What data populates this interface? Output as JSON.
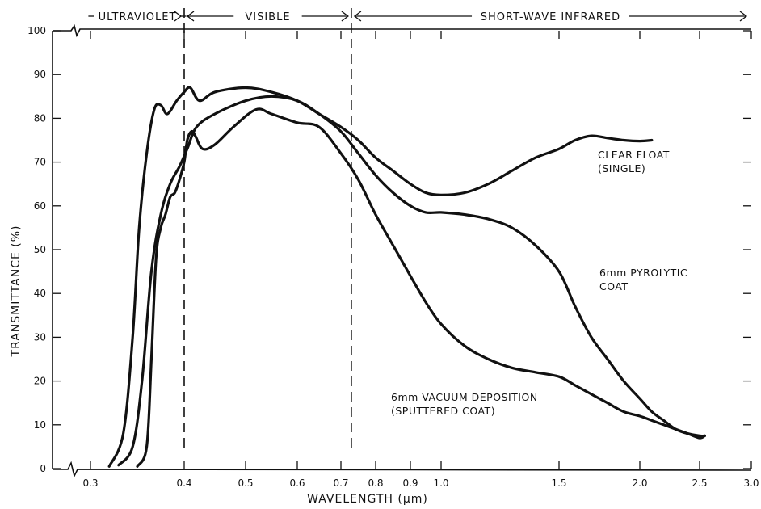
{
  "chart_data": {
    "type": "line",
    "title": "",
    "xlabel": "WAVELENGTH (μm)",
    "ylabel": "TRANSMITTANCE (%)",
    "xlim": [
      0.3,
      3.0
    ],
    "ylim": [
      0,
      100
    ],
    "x_ticks": [
      "0.3",
      "0.4",
      "0.5",
      "0.6",
      "0.7",
      "0.8",
      "0.9",
      "1.0",
      "1.5",
      "2.0",
      "2.5",
      "3.0"
    ],
    "y_ticks": [
      "0",
      "10",
      "20",
      "30",
      "40",
      "50",
      "60",
      "70",
      "80",
      "90",
      "100"
    ],
    "regions": [
      {
        "label": "ULTRAVIOLET",
        "from": 0.3,
        "to": 0.4
      },
      {
        "label": "VISIBLE",
        "from": 0.4,
        "to": 0.73
      },
      {
        "label": "SHORT-WAVE INFRARED",
        "from": 0.73,
        "to": 3.0
      }
    ],
    "series": [
      {
        "name": "CLEAR FLOAT (SINGLE)",
        "label_lines": [
          "CLEAR FLOAT",
          "(SINGLE)"
        ],
        "points": [
          [
            0.32,
            0.5
          ],
          [
            0.335,
            8
          ],
          [
            0.345,
            30
          ],
          [
            0.352,
            55
          ],
          [
            0.36,
            72
          ],
          [
            0.368,
            82
          ],
          [
            0.375,
            83
          ],
          [
            0.382,
            81
          ],
          [
            0.392,
            84
          ],
          [
            0.4,
            86
          ],
          [
            0.41,
            87
          ],
          [
            0.425,
            84
          ],
          [
            0.45,
            86
          ],
          [
            0.5,
            87
          ],
          [
            0.55,
            86
          ],
          [
            0.6,
            84
          ],
          [
            0.65,
            81
          ],
          [
            0.7,
            78
          ],
          [
            0.75,
            75
          ],
          [
            0.8,
            71
          ],
          [
            0.85,
            68
          ],
          [
            0.9,
            65
          ],
          [
            0.95,
            63
          ],
          [
            1.0,
            62.5
          ],
          [
            1.1,
            63
          ],
          [
            1.2,
            65
          ],
          [
            1.3,
            68
          ],
          [
            1.4,
            71
          ],
          [
            1.5,
            73
          ],
          [
            1.6,
            75
          ],
          [
            1.7,
            76
          ],
          [
            1.8,
            75.5
          ],
          [
            1.9,
            75
          ],
          [
            2.0,
            74.8
          ],
          [
            2.1,
            75
          ]
        ]
      },
      {
        "name": "6mm PYROLYTIC COAT",
        "label_lines": [
          "6mm PYROLYTIC",
          "COAT"
        ],
        "points": [
          [
            0.33,
            0.8
          ],
          [
            0.345,
            5
          ],
          [
            0.355,
            20
          ],
          [
            0.365,
            45
          ],
          [
            0.375,
            58
          ],
          [
            0.385,
            65
          ],
          [
            0.395,
            69
          ],
          [
            0.405,
            73
          ],
          [
            0.42,
            78
          ],
          [
            0.45,
            81
          ],
          [
            0.5,
            84
          ],
          [
            0.55,
            85
          ],
          [
            0.6,
            84
          ],
          [
            0.65,
            81
          ],
          [
            0.7,
            77
          ],
          [
            0.75,
            72
          ],
          [
            0.8,
            67
          ],
          [
            0.85,
            63
          ],
          [
            0.9,
            60
          ],
          [
            0.95,
            58.5
          ],
          [
            1.0,
            58.5
          ],
          [
            1.1,
            58
          ],
          [
            1.2,
            57
          ],
          [
            1.3,
            55
          ],
          [
            1.4,
            51
          ],
          [
            1.5,
            45
          ],
          [
            1.6,
            37
          ],
          [
            1.7,
            30
          ],
          [
            1.8,
            25
          ],
          [
            1.9,
            20
          ],
          [
            2.0,
            16
          ],
          [
            2.1,
            13
          ],
          [
            2.2,
            11
          ],
          [
            2.3,
            9
          ],
          [
            2.4,
            8
          ],
          [
            2.5,
            7.5
          ],
          [
            2.55,
            7.5
          ]
        ]
      },
      {
        "name": "6mm VACUUM DEPOSITION (SPUTTERED COAT)",
        "label_lines": [
          "6mm VACUUM DEPOSITION",
          "(SPUTTERED COAT)"
        ],
        "points": [
          [
            0.35,
            0.5
          ],
          [
            0.36,
            5
          ],
          [
            0.365,
            25
          ],
          [
            0.37,
            48
          ],
          [
            0.375,
            55
          ],
          [
            0.38,
            58
          ],
          [
            0.385,
            62
          ],
          [
            0.39,
            63
          ],
          [
            0.395,
            66
          ],
          [
            0.4,
            70
          ],
          [
            0.405,
            75
          ],
          [
            0.412,
            77
          ],
          [
            0.418,
            76
          ],
          [
            0.43,
            73
          ],
          [
            0.45,
            74
          ],
          [
            0.48,
            78
          ],
          [
            0.52,
            82
          ],
          [
            0.55,
            81
          ],
          [
            0.6,
            79
          ],
          [
            0.65,
            78
          ],
          [
            0.7,
            72
          ],
          [
            0.75,
            66
          ],
          [
            0.8,
            58
          ],
          [
            0.85,
            51
          ],
          [
            0.9,
            44
          ],
          [
            0.95,
            38
          ],
          [
            1.0,
            33
          ],
          [
            1.1,
            28
          ],
          [
            1.2,
            25
          ],
          [
            1.3,
            23
          ],
          [
            1.4,
            22
          ],
          [
            1.5,
            21
          ],
          [
            1.6,
            19
          ],
          [
            1.7,
            17
          ],
          [
            1.8,
            15
          ],
          [
            1.9,
            13
          ],
          [
            2.0,
            12
          ],
          [
            2.1,
            11
          ],
          [
            2.2,
            10
          ],
          [
            2.3,
            9
          ],
          [
            2.4,
            8
          ],
          [
            2.5,
            7
          ],
          [
            2.55,
            7.5
          ]
        ]
      }
    ]
  }
}
